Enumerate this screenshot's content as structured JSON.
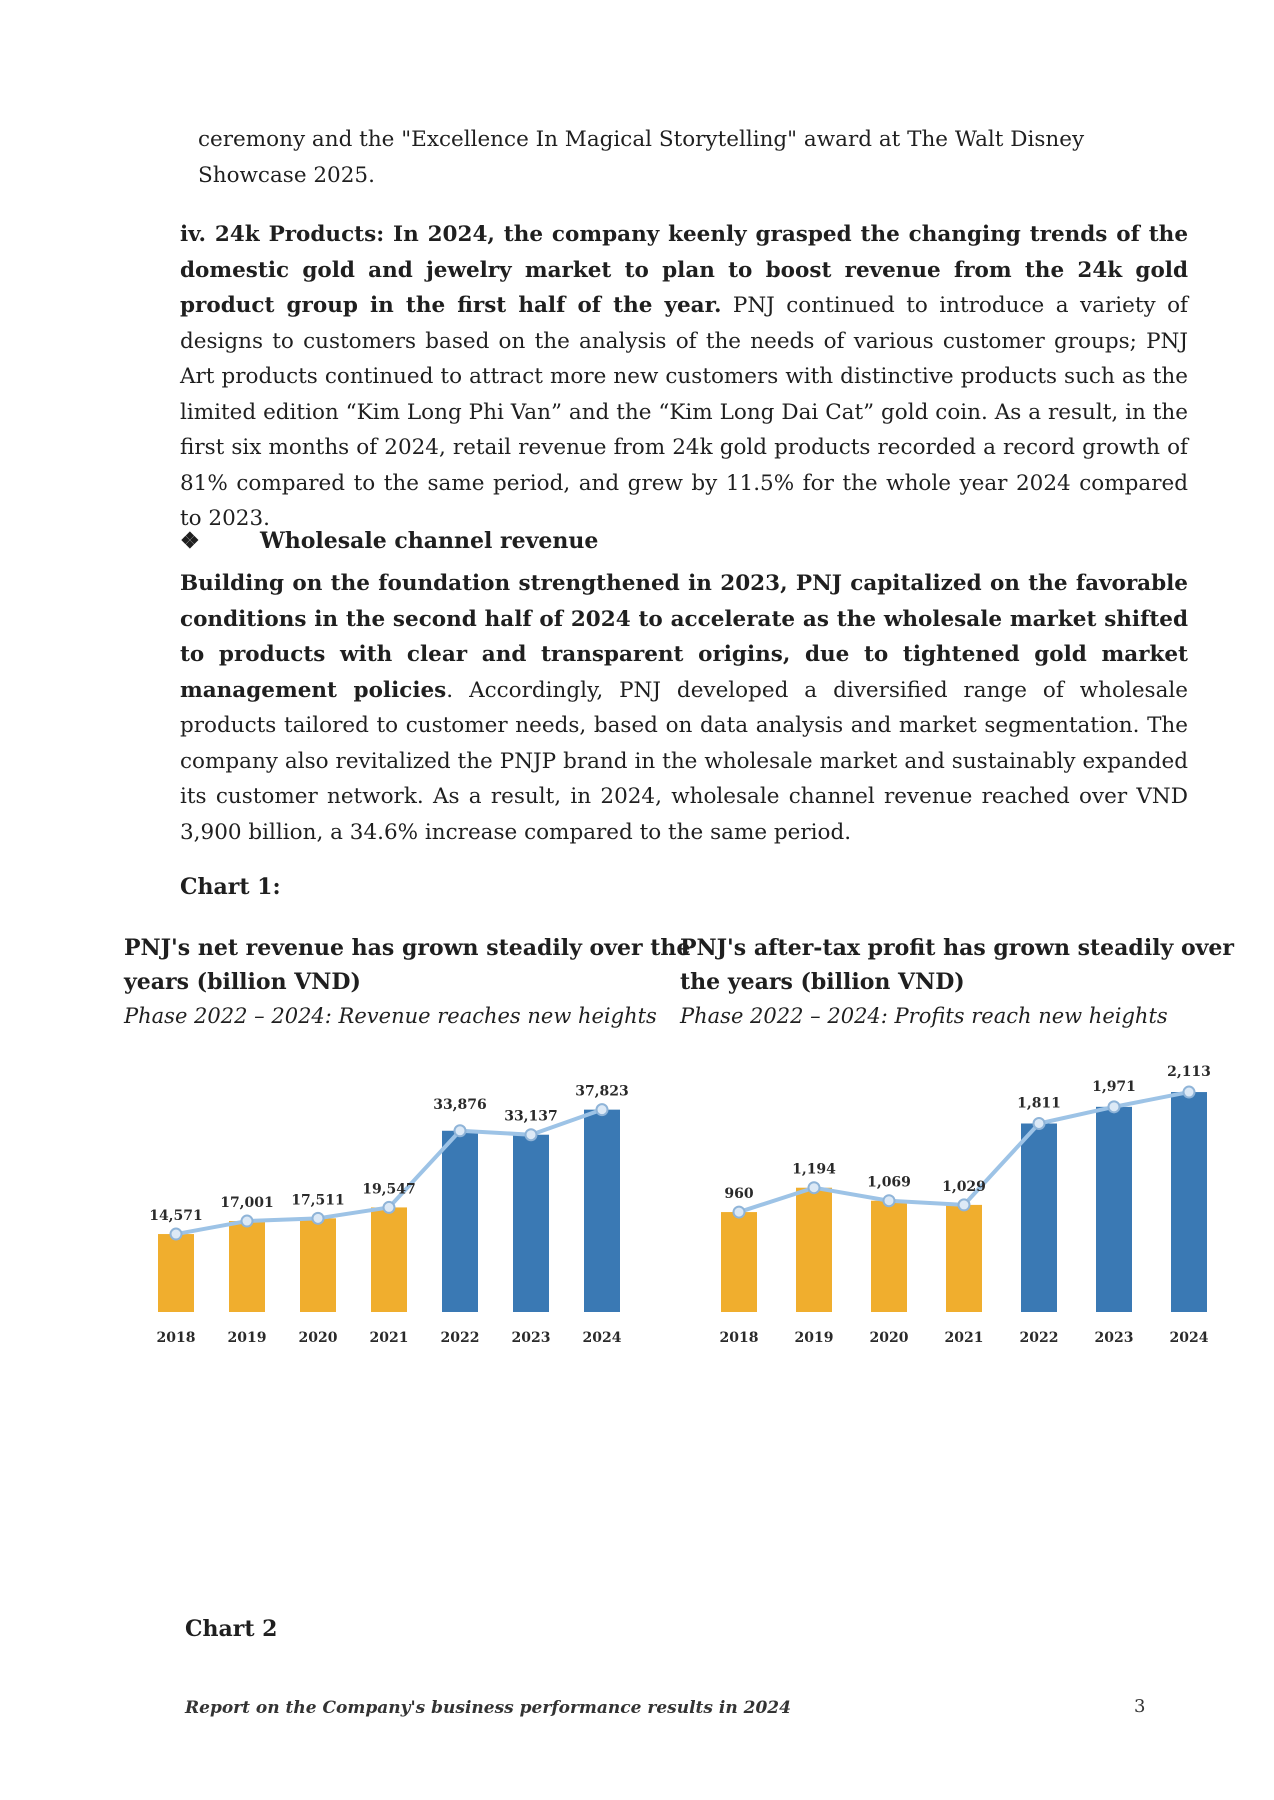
{
  "intro_text": "ceremony and the \"Excellence In Magical Storytelling\" award at The Walt Disney Showcase 2025.",
  "products_24k": {
    "bold": "iv. 24k Products: In 2024, the company keenly grasped the changing trends of the domestic gold and jewelry market to plan to boost revenue from the 24k gold product group in the first half of the year.",
    "text": " PNJ continued to introduce a variety of designs to customers based on the analysis of the needs of various customer groups; PNJ Art products continued to attract more new customers with distinctive products such as the limited edition “Kim Long Phi Van” and the “Kim Long Dai Cat” gold coin. As a result, in the first six months of 2024, retail revenue from 24k gold products recorded a record growth of 81% compared to the same period, and grew by 11.5% for the whole year 2024 compared to 2023."
  },
  "wholesale": {
    "bullet": "❖",
    "heading": "Wholesale channel revenue",
    "bold": "Building on the foundation strengthened in 2023, PNJ capitalized on the favorable conditions in the second half of 2024 to accelerate as the wholesale market shifted to products with clear and transparent origins, due to tightened gold market management policies",
    "text": ". Accordingly, PNJ developed a diversified range of wholesale products tailored to customer needs, based on data analysis and market segmentation. The company also revitalized the PNJP brand in the wholesale market and sustainably expanded its customer network. As a result, in 2024, wholesale channel revenue reached over VND 3,900 billion, a 34.6% increase compared to the same period."
  },
  "chart1_label": "Chart 1:",
  "chart2_label": "Chart 2",
  "colors": {
    "gold": "#F0AE2E",
    "blue": "#3A79B4",
    "line": "#9DC3E6"
  },
  "chart_data": [
    {
      "type": "bar",
      "title": "PNJ's net revenue has grown steadily over the years (billion VND)",
      "subtitle": "Phase 2022 – 2024: Revenue reaches new heights",
      "categories": [
        "2018",
        "2019",
        "2020",
        "2021",
        "2022",
        "2023",
        "2024"
      ],
      "values": [
        14571,
        17001,
        17511,
        19547,
        33876,
        33137,
        37823
      ],
      "value_labels": [
        "14,571",
        "17,001",
        "17,511",
        "19,547",
        "33,876",
        "33,137",
        "37,823"
      ],
      "ylim": [
        0,
        40000
      ],
      "overlay_line": true,
      "grid": false
    },
    {
      "type": "bar",
      "title": "PNJ's after-tax profit has grown steadily over the years (billion VND)",
      "subtitle": "Phase 2022 – 2024: Profits reach new heights",
      "categories": [
        "2018",
        "2019",
        "2020",
        "2021",
        "2022",
        "2023",
        "2024"
      ],
      "values": [
        960,
        1194,
        1069,
        1029,
        1811,
        1971,
        2113
      ],
      "value_labels": [
        "960",
        "1,194",
        "1,069",
        "1,029",
        "1,811",
        "1,971",
        "2,113"
      ],
      "ylim": [
        0,
        2200
      ],
      "overlay_line": true,
      "grid": false
    }
  ],
  "footer": {
    "text": "Report on the Company's business performance results in 2024",
    "page": "3"
  }
}
